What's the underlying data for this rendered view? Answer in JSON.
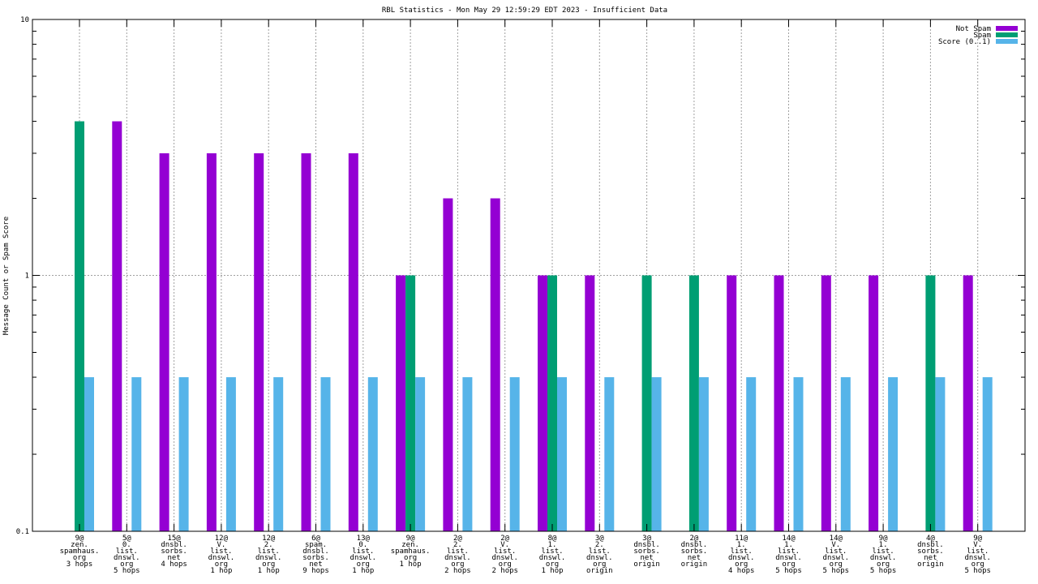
{
  "chart_data": {
    "type": "bar",
    "title": "RBL Statistics - Mon May 29 12:59:29 EDT 2023 - Insufficient Data",
    "xlabel": "",
    "ylabel": "Message Count or Spam Score",
    "yscale": "log",
    "ylim": [
      0.1,
      10
    ],
    "yticks": [
      "0.1",
      "1",
      "10"
    ],
    "grid": true,
    "legend_position": "top-right",
    "categories": [
      [
        "9@",
        "zen.",
        "spamhaus.",
        "org",
        "3 hops"
      ],
      [
        "5@",
        "0.",
        "list.",
        "dnswl.",
        "org",
        "5 hops"
      ],
      [
        "15@",
        "dnsbl.",
        "sorbs.",
        "net",
        "4 hops"
      ],
      [
        "12@",
        "V.",
        "list.",
        "dnswl.",
        "org",
        "1 hop"
      ],
      [
        "12@",
        "2.",
        "list.",
        "dnswl.",
        "org",
        "1 hop"
      ],
      [
        "6@",
        "spam.",
        "dnsbl.",
        "sorbs.",
        "net",
        "9 hops"
      ],
      [
        "13@",
        "0.",
        "list.",
        "dnswl.",
        "org",
        "1 hop"
      ],
      [
        "9@",
        "zen.",
        "spamhaus.",
        "org",
        "1 hop"
      ],
      [
        "2@",
        "2.",
        "list.",
        "dnswl.",
        "org",
        "2 hops"
      ],
      [
        "2@",
        "V.",
        "list.",
        "dnswl.",
        "org",
        "2 hops"
      ],
      [
        "8@",
        "1.",
        "list.",
        "dnswl.",
        "org",
        "1 hop"
      ],
      [
        "3@",
        "2.",
        "list.",
        "dnswl.",
        "org",
        "origin"
      ],
      [
        "3@",
        "dnsbl.",
        "sorbs.",
        "net",
        "origin"
      ],
      [
        "2@",
        "dnsbl.",
        "sorbs.",
        "net",
        "origin"
      ],
      [
        "11@",
        "1.",
        "list.",
        "dnswl.",
        "org",
        "4 hops"
      ],
      [
        "14@",
        "1.",
        "list.",
        "dnswl.",
        "org",
        "5 hops"
      ],
      [
        "14@",
        "V.",
        "list.",
        "dnswl.",
        "org",
        "5 hops"
      ],
      [
        "9@",
        "1.",
        "list.",
        "dnswl.",
        "org",
        "5 hops"
      ],
      [
        "4@",
        "dnsbl.",
        "sorbs.",
        "net",
        "origin"
      ],
      [
        "9@",
        "V.",
        "list.",
        "dnswl.",
        "org",
        "5 hops"
      ]
    ],
    "series": [
      {
        "name": "Not Spam",
        "color": "#9400d3",
        "values": [
          null,
          4,
          3,
          3,
          3,
          3,
          3,
          1,
          2,
          2,
          1,
          1,
          null,
          null,
          1,
          1,
          1,
          1,
          null,
          1
        ]
      },
      {
        "name": "Spam",
        "color": "#009e73",
        "values": [
          4,
          null,
          null,
          null,
          null,
          null,
          null,
          1,
          null,
          null,
          1,
          null,
          1,
          1,
          null,
          null,
          null,
          null,
          1,
          null
        ]
      },
      {
        "name": "Score (0..1)",
        "color": "#56b4e9",
        "values": [
          0.4,
          0.4,
          0.4,
          0.4,
          0.4,
          0.4,
          0.4,
          0.4,
          0.4,
          0.4,
          0.4,
          0.4,
          0.4,
          0.4,
          0.4,
          0.4,
          0.4,
          0.4,
          0.4,
          0.4
        ]
      }
    ]
  }
}
